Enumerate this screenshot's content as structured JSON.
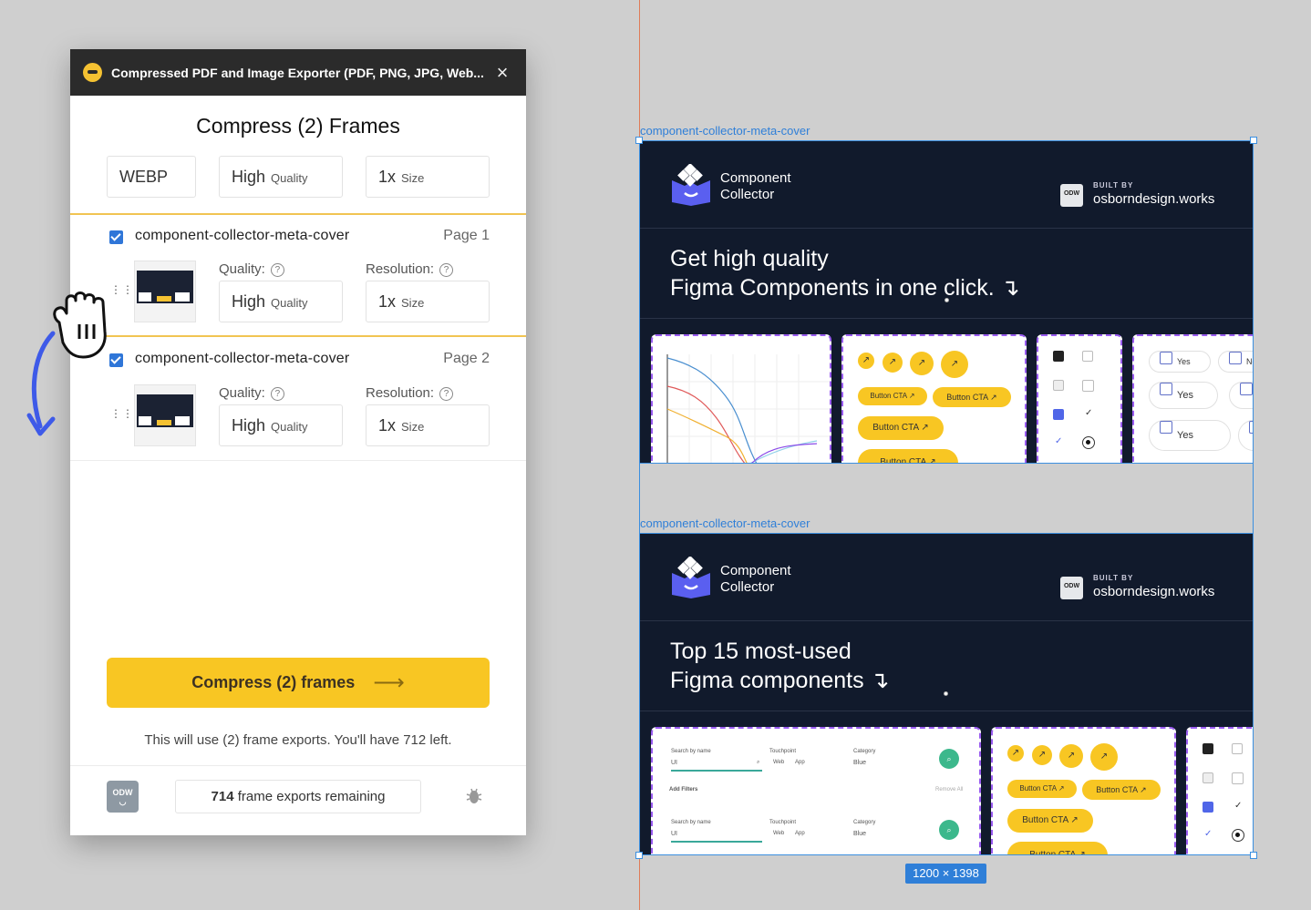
{
  "plugin": {
    "title": "Compressed PDF and Image Exporter (PDF, PNG, JPG, Web...",
    "heading": "Compress (2) Frames",
    "global_options": {
      "format": "WEBP",
      "quality_value": "High",
      "quality_label": "Quality",
      "size_value": "1x",
      "size_label": "Size"
    },
    "frames": [
      {
        "name": "component-collector-meta-cover",
        "page": "Page 1",
        "quality_label": "Quality:",
        "resolution_label": "Resolution:",
        "quality_value": "High",
        "quality_unit": "Quality",
        "size_value": "1x",
        "size_unit": "Size"
      },
      {
        "name": "component-collector-meta-cover",
        "page": "Page 2",
        "quality_label": "Quality:",
        "resolution_label": "Resolution:",
        "quality_value": "High",
        "quality_unit": "Quality",
        "size_value": "1x",
        "size_unit": "Size"
      }
    ],
    "cta_label": "Compress (2) frames",
    "note": "This will use (2) frame exports. You'll have 712 left.",
    "footer": {
      "logo_text": "ODW",
      "remaining_count": "714",
      "remaining_text": "frame exports remaining"
    }
  },
  "canvas": {
    "frame_labels": [
      "component-collector-meta-cover",
      "component-collector-meta-cover"
    ],
    "frames": [
      {
        "brand_line1": "Component",
        "brand_line2": "Collector",
        "built_by": "BUILT BY",
        "site": "osborndesign.works",
        "odw": "ODW",
        "headline_line1": "Get high quality",
        "headline_line2": "Figma Components in one click. ↴"
      },
      {
        "brand_line1": "Component",
        "brand_line2": "Collector",
        "built_by": "BUILT BY",
        "site": "osborndesign.works",
        "odw": "ODW",
        "headline_line1": "Top 15 most-used",
        "headline_line2": "Figma components ↴"
      }
    ],
    "button_cta": "Button CTA ↗",
    "yes": "Yes",
    "no": "No",
    "search_by_name": "Search by name",
    "touchpoint": "Touchpoint",
    "category": "Category",
    "ui": "UI",
    "web": "Web",
    "app": "App",
    "blue": "Blue",
    "add_filters": "Add Filters",
    "remove_all": "Remove All",
    "size_badge": "1200 × 1398"
  },
  "colors": {
    "accent_yellow": "#f8c623",
    "selection_blue": "#2f7fd8",
    "frame_bg": "#111a2c",
    "card_border": "#9a5cf0"
  }
}
